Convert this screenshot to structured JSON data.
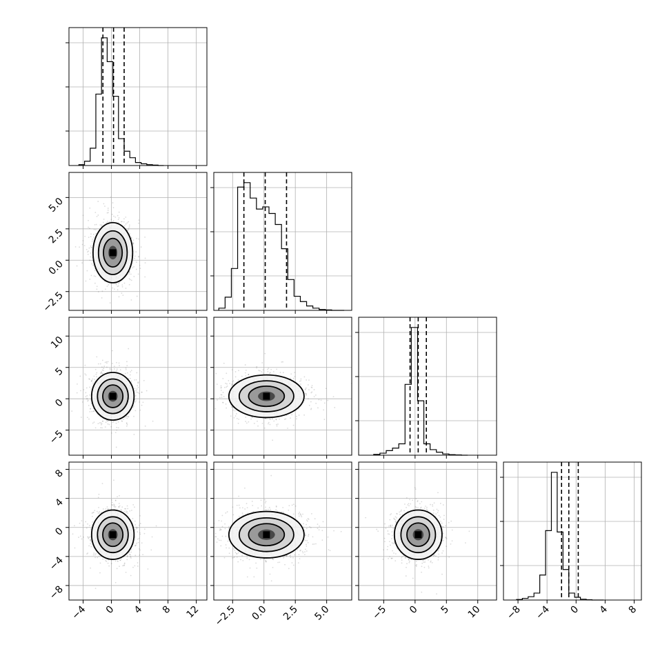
{
  "chart_data": {
    "type": "corner",
    "parameters": 4,
    "grid": true,
    "axis_ranges": [
      [
        -6,
        13.5
      ],
      [
        -4,
        7
      ],
      [
        -9,
        13
      ],
      [
        -10,
        9
      ]
    ],
    "ticks": [
      {
        "values": [
          -4,
          0,
          4,
          8,
          12
        ],
        "labels": [
          "−4",
          "0",
          "4",
          "8",
          "12"
        ]
      },
      {
        "values": [
          -2.5,
          0.0,
          2.5,
          5.0
        ],
        "labels": [
          "−2.5",
          "0.0",
          "2.5",
          "5.0"
        ]
      },
      {
        "values": [
          -5,
          0,
          5,
          10
        ],
        "labels": [
          "−5",
          "0",
          "5",
          "10"
        ]
      },
      {
        "values": [
          -8,
          -4,
          0,
          4,
          8
        ],
        "labels": [
          "−8",
          "−4",
          "0",
          "4",
          "8"
        ]
      }
    ],
    "histograms": [
      {
        "param": 0,
        "bin_start": -4.6,
        "bin_width": 0.8,
        "counts": [
          2,
          10,
          40,
          165,
          295,
          240,
          160,
          62,
          33,
          18,
          7,
          4,
          2,
          1,
          0
        ],
        "quantiles": [
          -1.2,
          0.3,
          1.8
        ]
      },
      {
        "param": 1,
        "bin_start": -3.6,
        "bin_width": 0.5,
        "counts": [
          5,
          30,
          95,
          280,
          290,
          255,
          230,
          235,
          220,
          195,
          140,
          70,
          32,
          20,
          10,
          5,
          2,
          1,
          0,
          0
        ],
        "quantiles": [
          -1.6,
          0.1,
          1.8
        ]
      },
      {
        "param": 2,
        "bin_start": -6.6,
        "bin_width": 1.0,
        "counts": [
          3,
          8,
          18,
          28,
          45,
          280,
          505,
          215,
          45,
          22,
          12,
          5,
          2,
          1,
          0
        ],
        "quantiles": [
          -0.8,
          0.5,
          1.8
        ]
      },
      {
        "param": 3,
        "bin_start": -8.2,
        "bin_width": 0.8,
        "counts": [
          2,
          6,
          12,
          25,
          90,
          250,
          460,
          245,
          110,
          25,
          10,
          3,
          1,
          0,
          0
        ],
        "quantiles": [
          -2.0,
          -1.0,
          0.3
        ]
      }
    ],
    "scatter_pairs": [
      {
        "x_param": 0,
        "y_param": 1,
        "center": [
          0.2,
          0.6
        ],
        "spread": [
          1.4,
          1.2
        ]
      },
      {
        "x_param": 0,
        "y_param": 2,
        "center": [
          0.2,
          0.4
        ],
        "spread": [
          1.5,
          1.9
        ]
      },
      {
        "x_param": 1,
        "y_param": 2,
        "center": [
          0.2,
          0.4
        ],
        "spread": [
          1.5,
          1.7
        ]
      },
      {
        "x_param": 0,
        "y_param": 3,
        "center": [
          0.2,
          -1.0
        ],
        "spread": [
          1.5,
          1.7
        ]
      },
      {
        "x_param": 1,
        "y_param": 3,
        "center": [
          0.2,
          -1.0
        ],
        "spread": [
          1.5,
          1.6
        ]
      },
      {
        "x_param": 2,
        "y_param": 3,
        "center": [
          0.5,
          -1.0
        ],
        "spread": [
          1.9,
          1.7
        ]
      }
    ]
  }
}
